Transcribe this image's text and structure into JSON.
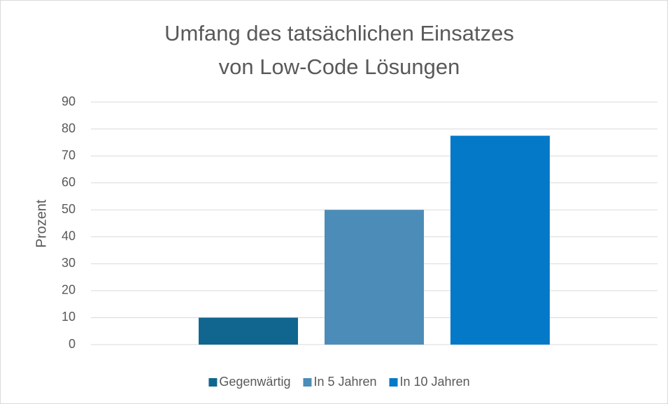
{
  "chart_data": {
    "type": "bar",
    "title": "Umfang des tatsächlichen Einsatzes",
    "subtitle": "von Low-Code Lösungen",
    "y_label": "Prozent",
    "categories": [
      null
    ],
    "series": [
      {
        "name": "Gegenwärtig",
        "color": "#10668f",
        "values": [
          10
        ]
      },
      {
        "name": "In 5 Jahren",
        "color": "#4b8db8",
        "values": [
          50
        ]
      },
      {
        "name": "In 10 Jahren",
        "color": "#0479c8",
        "values": [
          77.5
        ]
      }
    ],
    "ylim": [
      0,
      90
    ],
    "yticks": [
      0,
      10,
      20,
      30,
      40,
      50,
      60,
      70,
      80,
      90
    ],
    "grid": true,
    "legend": "bottom"
  }
}
